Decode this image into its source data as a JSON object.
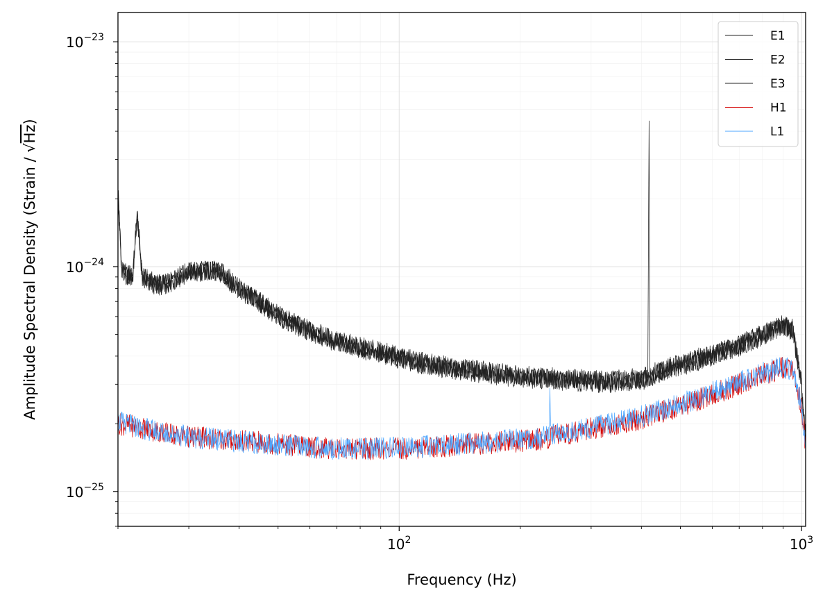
{
  "chart_data": {
    "type": "line",
    "xlabel": "Frequency (Hz)",
    "ylabel": "Amplitude Spectral Density (Strain / √Hz)",
    "ylabel_parts": {
      "prefix": "Amplitude Spectral Density (Strain / ",
      "root": "√",
      "radicand": "Hz",
      "suffix": ")"
    },
    "xscale": "log",
    "yscale": "log",
    "xlim": [
      20,
      1024
    ],
    "ylim": [
      7e-26,
      1.35e-23
    ],
    "grid": true,
    "legend_position": "top-right",
    "x_ticks": [
      {
        "value": 100,
        "base": "10",
        "exp": "2"
      },
      {
        "value": 1000,
        "base": "10",
        "exp": "3"
      }
    ],
    "y_ticks": [
      {
        "value": 1e-25,
        "base": "10",
        "exp": "−25"
      },
      {
        "value": 1e-24,
        "base": "10",
        "exp": "−24"
      },
      {
        "value": 1e-23,
        "base": "10",
        "exp": "−23"
      }
    ],
    "series": [
      {
        "name": "E1",
        "color": "#222222",
        "x": [
          20,
          20.4,
          21,
          21.8,
          22.3,
          23,
          25,
          27,
          28,
          30,
          33,
          36,
          38,
          40,
          45,
          50,
          60,
          70,
          80,
          100,
          120,
          150,
          200,
          250,
          300,
          350,
          400,
          415,
          418,
          420,
          422,
          425,
          450,
          500,
          600,
          700,
          800,
          900,
          950,
          1000,
          1024
        ],
        "y": [
          2.3e-24,
          1e-24,
          9.2e-25,
          9.3e-25,
          1.75e-24,
          9e-25,
          8.4e-25,
          8.5e-25,
          9e-25,
          9.5e-25,
          9.7e-25,
          9.5e-25,
          8.8e-25,
          8e-25,
          7e-25,
          6.1e-25,
          5.2e-25,
          4.7e-25,
          4.4e-25,
          4e-25,
          3.7e-25,
          3.5e-25,
          3.3e-25,
          3.2e-25,
          3.15e-25,
          3.15e-25,
          3.2e-25,
          3.3e-25,
          4.8e-24,
          3.4e-25,
          3.3e-25,
          3.4e-25,
          3.5e-25,
          3.7e-25,
          4.1e-25,
          4.5e-25,
          5e-25,
          5.5e-25,
          5.3e-25,
          3e-25,
          1.7e-25
        ]
      },
      {
        "name": "E2",
        "color": "#222222",
        "x": [
          20,
          20.4,
          21,
          21.8,
          22.3,
          23,
          25,
          27,
          28,
          30,
          33,
          36,
          38,
          40,
          45,
          50,
          60,
          70,
          80,
          100,
          120,
          150,
          200,
          250,
          300,
          350,
          400,
          450,
          500,
          600,
          700,
          800,
          900,
          950,
          1000,
          1024
        ],
        "y": [
          2.1e-24,
          9.8e-25,
          9e-25,
          9.2e-25,
          1.7e-24,
          8.8e-25,
          8.2e-25,
          8.4e-25,
          8.8e-25,
          9.3e-25,
          9.6e-25,
          9.3e-25,
          8.6e-25,
          7.9e-25,
          6.9e-25,
          6e-25,
          5.1e-25,
          4.6e-25,
          4.3e-25,
          3.9e-25,
          3.6e-25,
          3.4e-25,
          3.2e-25,
          3.1e-25,
          3.05e-25,
          3.05e-25,
          3.1e-25,
          3.4e-25,
          3.6e-25,
          4e-25,
          4.4e-25,
          4.9e-25,
          5.4e-25,
          5.2e-25,
          2.9e-25,
          1.65e-25
        ]
      },
      {
        "name": "E3",
        "color": "#222222",
        "x": [
          20,
          20.4,
          21,
          21.8,
          22.3,
          23,
          25,
          27,
          28,
          30,
          33,
          36,
          38,
          40,
          45,
          50,
          60,
          70,
          80,
          100,
          120,
          150,
          200,
          250,
          300,
          350,
          400,
          450,
          500,
          600,
          700,
          800,
          900,
          950,
          1000,
          1024
        ],
        "y": [
          2.2e-24,
          9.9e-25,
          9.1e-25,
          9.2e-25,
          1.72e-24,
          8.9e-25,
          8.3e-25,
          8.45e-25,
          8.9e-25,
          9.4e-25,
          9.65e-25,
          9.4e-25,
          8.7e-25,
          7.95e-25,
          6.95e-25,
          6.05e-25,
          5.15e-25,
          4.65e-25,
          4.35e-25,
          3.95e-25,
          3.65e-25,
          3.45e-25,
          3.25e-25,
          3.15e-25,
          3.1e-25,
          3.1e-25,
          3.15e-25,
          3.45e-25,
          3.65e-25,
          4.05e-25,
          4.45e-25,
          4.95e-25,
          5.45e-25,
          5.25e-25,
          2.95e-25,
          1.68e-25
        ]
      },
      {
        "name": "H1",
        "color": "#d40000",
        "x": [
          20,
          22,
          25,
          30,
          40,
          50,
          60,
          70,
          80,
          100,
          120,
          150,
          200,
          230,
          250,
          300,
          400,
          500,
          600,
          700,
          800,
          900,
          950,
          1000,
          1024
        ],
        "y": [
          2e-25,
          1.95e-25,
          1.85e-25,
          1.75e-25,
          1.68e-25,
          1.63e-25,
          1.58e-25,
          1.55e-25,
          1.55e-25,
          1.55e-25,
          1.58e-25,
          1.62e-25,
          1.68e-25,
          1.72e-25,
          1.78e-25,
          1.9e-25,
          2.1e-25,
          2.4e-25,
          2.7e-25,
          3e-25,
          3.3e-25,
          3.55e-25,
          3.4e-25,
          2.4e-25,
          1.6e-25
        ]
      },
      {
        "name": "L1",
        "color": "#4da6ff",
        "x": [
          20,
          22,
          25,
          30,
          40,
          50,
          60,
          70,
          80,
          100,
          120,
          150,
          200,
          230,
          236,
          237,
          238,
          240,
          250,
          300,
          400,
          500,
          600,
          700,
          800,
          900,
          950,
          1000,
          1024
        ],
        "y": [
          2.05e-25,
          1.95e-25,
          1.85e-25,
          1.75e-25,
          1.67e-25,
          1.62e-25,
          1.57e-25,
          1.55e-25,
          1.55e-25,
          1.56e-25,
          1.59e-25,
          1.63e-25,
          1.7e-25,
          1.75e-25,
          1.75e-25,
          3.2e-25,
          1.78e-25,
          1.78e-25,
          1.8e-25,
          1.93e-25,
          2.15e-25,
          2.45e-25,
          2.75e-25,
          3.05e-25,
          3.35e-25,
          3.6e-25,
          3.45e-25,
          2.45e-25,
          1.55e-25
        ]
      }
    ]
  }
}
